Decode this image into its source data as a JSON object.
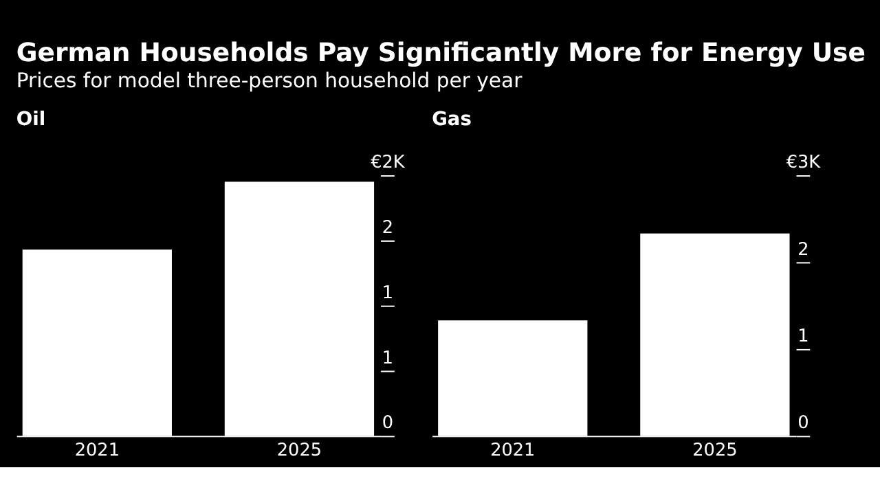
{
  "chart_data": [
    {
      "type": "bar",
      "title": "German Households Pay Significantly More for Energy Use",
      "subtitle": "Prices for model three-person household per year",
      "annotations": [
        "Oil"
      ],
      "categories": [
        "2021",
        "2025"
      ],
      "values": [
        1.43,
        1.95
      ],
      "color": "#ffffff",
      "ylim": [
        0,
        2
      ],
      "yticks": [
        0,
        {
          "value": 0.5,
          "label": "1"
        },
        1,
        {
          "value": 1.5,
          "label": "2"
        },
        {
          "value": 2,
          "label": "€2K"
        }
      ],
      "grid": false
    },
    {
      "type": "bar",
      "annotations": [
        "Gas"
      ],
      "categories": [
        "2021",
        "2025"
      ],
      "values": [
        1.33,
        2.33
      ],
      "color": "#ffffff",
      "ylim": [
        0,
        3
      ],
      "yticks": [
        0,
        1,
        2,
        {
          "value": 3,
          "label": "€3K"
        }
      ],
      "grid": false
    }
  ]
}
